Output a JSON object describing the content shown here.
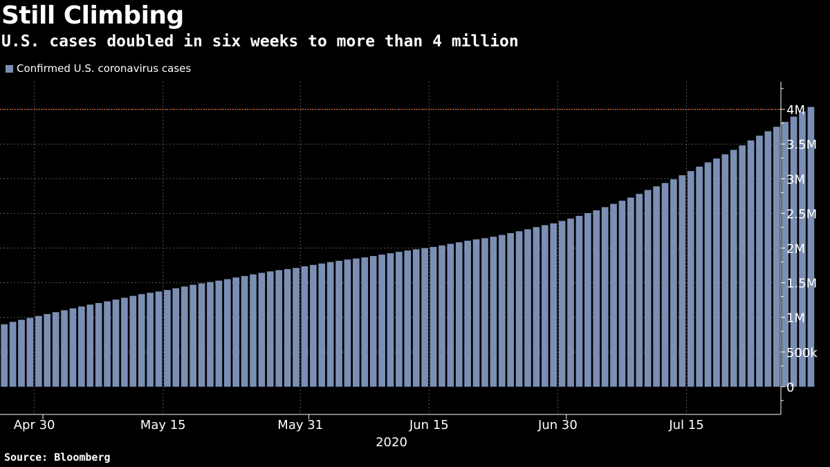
{
  "header": {
    "title": "Still Climbing",
    "subtitle": "U.S. cases doubled in six weeks to more than 4 million"
  },
  "footer": {
    "source": "Source: Bloomberg"
  },
  "colors": {
    "background": "#000000",
    "bar": "#7b8fb4",
    "reference_line": "#e8743b",
    "grid": "#5a5a5a",
    "text": "#ffffff"
  },
  "chart_data": {
    "type": "bar",
    "title": "Still Climbing",
    "subtitle": "U.S. cases doubled in six weeks to more than 4 million",
    "series": [
      {
        "name": "Confirmed U.S. coronavirus cases",
        "start_date": "2020-04-26",
        "values": [
          900000,
          935000,
          965000,
          992000,
          1020000,
          1048000,
          1075000,
          1103000,
          1130000,
          1157000,
          1184000,
          1207000,
          1231000,
          1257000,
          1283000,
          1310000,
          1335000,
          1355000,
          1373000,
          1395000,
          1420000,
          1445000,
          1470000,
          1490000,
          1510000,
          1530000,
          1551000,
          1575000,
          1597000,
          1620000,
          1642000,
          1663000,
          1681000,
          1696000,
          1713000,
          1736000,
          1757000,
          1777000,
          1798000,
          1816000,
          1834000,
          1849000,
          1865000,
          1885000,
          1905000,
          1925000,
          1946000,
          1964000,
          1982000,
          1998000,
          2016000,
          2037000,
          2060000,
          2083000,
          2106000,
          2125000,
          2142000,
          2164000,
          2188000,
          2215000,
          2242000,
          2270000,
          2302000,
          2330000,
          2356000,
          2390000,
          2425000,
          2464000,
          2504000,
          2544000,
          2590000,
          2637000,
          2682000,
          2728000,
          2781000,
          2837000,
          2890000,
          2938000,
          2991000,
          3050000,
          3110000,
          3174000,
          3236000,
          3291000,
          3351000,
          3416000,
          3480000,
          3552000,
          3621000,
          3685000,
          3749000,
          3820000,
          3895000,
          3968000,
          4035000
        ]
      }
    ],
    "x_ticks": [
      {
        "label": "Apr 30",
        "date": "2020-04-30"
      },
      {
        "label": "May 15",
        "date": "2020-05-15"
      },
      {
        "label": "May 31",
        "date": "2020-05-31"
      },
      {
        "label": "Jun 15",
        "date": "2020-06-15"
      },
      {
        "label": "Jun 30",
        "date": "2020-06-30"
      },
      {
        "label": "Jul 15",
        "date": "2020-07-15"
      }
    ],
    "x_minor_ticks": [
      "2020-05-01",
      "2020-06-01",
      "2020-07-01"
    ],
    "x_year_label": "2020",
    "y_ticks": [
      {
        "value": 0,
        "label": "0"
      },
      {
        "value": 500000,
        "label": "500k"
      },
      {
        "value": 1000000,
        "label": "1M"
      },
      {
        "value": 1500000,
        "label": "1.5M"
      },
      {
        "value": 2000000,
        "label": "2M"
      },
      {
        "value": 2500000,
        "label": "2.5M"
      },
      {
        "value": 3000000,
        "label": "3M"
      },
      {
        "value": 3500000,
        "label": "3.5M"
      },
      {
        "value": 4000000,
        "label": "4M"
      }
    ],
    "ylim": [
      -400000,
      4400000
    ],
    "xlim": [
      "2020-04-26",
      "2020-07-26"
    ],
    "reference_line": {
      "value": 4000000,
      "style": "dotted"
    },
    "legend": {
      "position": "top-left"
    },
    "grid": true,
    "y_axis_position": "right"
  }
}
